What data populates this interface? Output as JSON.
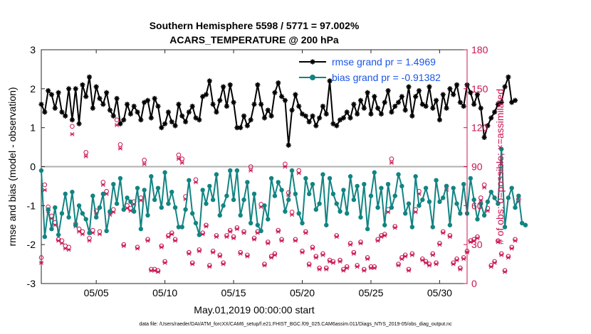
{
  "chart_data": {
    "type": "line",
    "title_line1": "Southern Hemisphere 5598 / 5771 = 97.002%",
    "title_line2": "ACARS_TEMPERATURE @ 200 hPa",
    "xlabel": "May.01,2019 00:00:00 start",
    "ylabel_left": "rmse and bias (model - observation)",
    "ylabel_right": "# of obs: o=possible; ×=assimilated",
    "ylim_left": [
      -3,
      3
    ],
    "ylim_right": [
      0,
      180
    ],
    "yticks_left": [
      "-3",
      "-2",
      "-1",
      "0",
      "1",
      "2",
      "3"
    ],
    "yticks_right": [
      "0",
      "30",
      "60",
      "90",
      "120",
      "150",
      "180"
    ],
    "x_days_range": [
      1,
      32
    ],
    "xticks": [
      {
        "day": 5,
        "label": "05/05"
      },
      {
        "day": 10,
        "label": "05/10"
      },
      {
        "day": 15,
        "label": "05/15"
      },
      {
        "day": 20,
        "label": "05/20"
      },
      {
        "day": 25,
        "label": "05/25"
      },
      {
        "day": 30,
        "label": "05/30"
      }
    ],
    "x_start_day": 1.0,
    "x_step_days": 0.25,
    "series": [
      {
        "name": "rmse",
        "legend": "rmse grand pr = 1.4969",
        "color": "#000000",
        "marker": "star",
        "values": [
          1.6,
          1.4,
          1.95,
          1.85,
          1.5,
          1.9,
          1.4,
          1.3,
          2.0,
          1.2,
          2.0,
          1.1,
          2.1,
          1.8,
          2.3,
          1.5,
          2.05,
          1.75,
          1.6,
          1.9,
          1.45,
          1.3,
          1.75,
          1.1,
          1.2,
          1.6,
          1.35,
          1.55,
          1.4,
          1.2,
          1.65,
          1.7,
          1.25,
          1.75,
          1.55,
          1.0,
          1.1,
          1.4,
          1.15,
          1.05,
          1.6,
          1.3,
          1.15,
          1.4,
          1.55,
          1.25,
          1.2,
          1.8,
          1.85,
          2.2,
          1.6,
          1.4,
          1.7,
          2.05,
          1.55,
          2.1,
          1.65,
          1.0,
          1.0,
          1.3,
          1.05,
          1.2,
          1.6,
          2.1,
          1.6,
          1.25,
          1.45,
          1.3,
          1.9,
          2.15,
          1.8,
          1.7,
          0.55,
          1.45,
          1.85,
          1.55,
          1.35,
          1.3,
          1.15,
          1.3,
          1.05,
          1.25,
          1.55,
          1.35,
          2.2,
          1.1,
          1.05,
          1.2,
          1.25,
          1.4,
          1.25,
          1.6,
          1.35,
          1.7,
          1.5,
          1.9,
          1.35,
          1.8,
          1.5,
          1.35,
          1.65,
          1.95,
          1.4,
          1.55,
          1.65,
          1.8,
          1.45,
          2.05,
          1.3,
          1.8,
          1.95,
          1.6,
          1.55,
          2.05,
          1.5,
          1.7,
          1.2,
          1.85,
          1.5,
          2.0,
          1.85,
          2.1,
          1.65,
          1.55,
          2.1,
          1.9,
          1.6,
          1.85,
          1.5,
          0.75,
          1.05,
          1.25,
          1.4,
          1.6,
          1.65,
          2.05,
          2.3,
          1.65,
          1.7
        ]
      },
      {
        "name": "bias",
        "legend": "bias grand pr = -0.91382",
        "color": "#128482",
        "marker": "dot",
        "values": [
          -0.1,
          -1.8,
          -1.1,
          -1.6,
          -1.05,
          -1.75,
          -1.2,
          -0.7,
          -1.3,
          -0.65,
          -1.5,
          -1.0,
          -1.2,
          -1.35,
          -1.7,
          -0.75,
          -1.3,
          -1.05,
          -0.7,
          -1.65,
          -1.15,
          -0.45,
          -0.95,
          -0.3,
          -1.1,
          -0.8,
          -0.9,
          -1.15,
          -0.55,
          -1.6,
          -0.6,
          -1.25,
          -0.25,
          -0.85,
          -0.55,
          -1.05,
          -0.15,
          -0.95,
          -0.65,
          -1.05,
          -1.55,
          -1.55,
          -1.1,
          -0.35,
          -1.2,
          -1.45,
          -1.75,
          -0.6,
          -0.95,
          -0.5,
          -0.85,
          -0.2,
          -1.25,
          -1.0,
          -0.75,
          -0.1,
          -0.85,
          -0.1,
          -1.25,
          -0.85,
          -0.4,
          -1.45,
          -0.7,
          -1.5,
          -1.65,
          -1.0,
          -1.35,
          -0.3,
          -0.75,
          -0.4,
          -0.6,
          -1.15,
          -0.85,
          -0.1,
          -0.7,
          -1.2,
          -1.45,
          -0.3,
          -0.7,
          -0.45,
          -1.1,
          -0.95,
          -0.2,
          -1.5,
          -0.3,
          -0.7,
          -0.95,
          -1.15,
          -0.6,
          -1.2,
          -0.25,
          -0.85,
          -0.5,
          -1.3,
          -0.45,
          -1.6,
          -0.75,
          -0.15,
          -1.05,
          -0.55,
          -1.5,
          -0.45,
          -1.05,
          -0.75,
          -0.2,
          -0.5,
          -1.2,
          -0.95,
          -1.55,
          -0.25,
          -1.0,
          -0.85,
          -0.55,
          -0.9,
          -1.55,
          -0.35,
          -0.9,
          -0.8,
          -0.5,
          -1.5,
          -0.55,
          -0.95,
          -1.2,
          -0.45,
          -1.2,
          -0.3,
          -0.85,
          -1.35,
          -0.95,
          -1.25,
          -0.9,
          -0.65,
          -0.8,
          -0.95,
          0.45,
          -1.55,
          -0.8,
          -0.55,
          -1.05,
          -0.75,
          -1.45,
          -1.5
        ]
      },
      {
        "name": "obs_possible",
        "axis": "right",
        "color": "#c8134f",
        "marker": "circle",
        "values": [
          20,
          76,
          59,
          52,
          47,
          34,
          33,
          29,
          28,
          121,
          46,
          42,
          40,
          101,
          35,
          41,
          56,
          40,
          78,
          71,
          55,
          57,
          126,
          107,
          30,
          60,
          58,
          63,
          28,
          66,
          95,
          34,
          11,
          11,
          10,
          29,
          17,
          37,
          39,
          34,
          99,
          96,
          67,
          24,
          16,
          80,
          26,
          39,
          45,
          14,
          25,
          37,
          22,
          16,
          37,
          41,
          36,
          43,
          24,
          40,
          22,
          90,
          35,
          40,
          61,
          15,
          32,
          21,
          23,
          41,
          34,
          92,
          70,
          55,
          34,
          87,
          25,
          40,
          15,
          28,
          21,
          12,
          23,
          12,
          18,
          17,
          37,
          18,
          11,
          13,
          31,
          24,
          14,
          32,
          11,
          20,
          13,
          13,
          34,
          37,
          38,
          57,
          96,
          44,
          15,
          20,
          22,
          11,
          23,
          57,
          71,
          19,
          17,
          15,
          23,
          16,
          31,
          40,
          75,
          37,
          16,
          19,
          12,
          20,
          25,
          33,
          34,
          36,
          66,
          76,
          58,
          14,
          17,
          33,
          23,
          10,
          21,
          28,
          34,
          65
        ]
      },
      {
        "name": "obs_assimilated",
        "axis": "right",
        "color": "#c8134f",
        "marker": "cross",
        "values": [
          16,
          72,
          56,
          50,
          45,
          33,
          31,
          27,
          26,
          115,
          44,
          40,
          38,
          98,
          33,
          39,
          54,
          38,
          76,
          69,
          53,
          55,
          122,
          104,
          29,
          58,
          56,
          61,
          27,
          64,
          92,
          33,
          10,
          10,
          9,
          28,
          16,
          36,
          38,
          33,
          96,
          93,
          65,
          23,
          15,
          78,
          25,
          38,
          44,
          13,
          24,
          36,
          21,
          15,
          36,
          40,
          35,
          42,
          23,
          39,
          21,
          87,
          34,
          39,
          59,
          14,
          31,
          20,
          22,
          40,
          33,
          90,
          68,
          53,
          33,
          85,
          24,
          39,
          14,
          27,
          20,
          11,
          22,
          11,
          17,
          16,
          36,
          17,
          10,
          12,
          30,
          23,
          13,
          31,
          10,
          19,
          12,
          12,
          33,
          36,
          37,
          55,
          93,
          43,
          14,
          19,
          21,
          10,
          22,
          55,
          69,
          18,
          16,
          14,
          22,
          15,
          30,
          39,
          72,
          36,
          15,
          18,
          11,
          19,
          24,
          32,
          33,
          35,
          64,
          74,
          56,
          13,
          16,
          32,
          22,
          9,
          20,
          27,
          33,
          63
        ]
      }
    ],
    "zero_line": true,
    "footnote": "data file: /Users/raeder/DAI/ATM_forcXX/CAM6_setup/f.e21.FHIST_BGC.f09_025.CAM6assim.011/Diags_NTrS_2019-05/obs_diag_output.nc"
  }
}
